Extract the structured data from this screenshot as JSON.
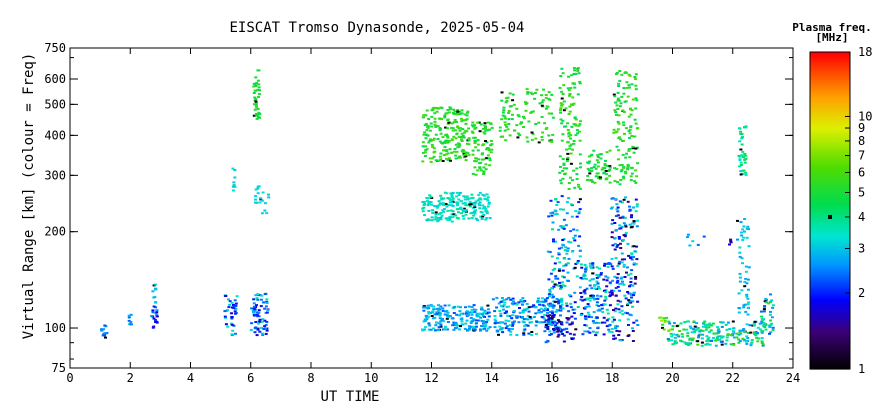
{
  "chart_data": {
    "type": "scatter",
    "title": "EISCAT Tromso Dynasonde, 2025-05-04",
    "xlabel": "UT TIME",
    "ylabel": "Virtual Range [km] (colour = Freq)",
    "xlim": [
      0,
      24
    ],
    "ylim": [
      75,
      750
    ],
    "y_scale": "log",
    "x_ticks": [
      "0",
      "2",
      "4",
      "6",
      "8",
      "10",
      "12",
      "14",
      "16",
      "18",
      "20",
      "22",
      "24"
    ],
    "y_ticks": [
      {
        "value": 75,
        "label": "75"
      },
      {
        "value": 100,
        "label": "100"
      },
      {
        "value": 200,
        "label": "200"
      },
      {
        "value": 300,
        "label": "300"
      },
      {
        "value": 400,
        "label": "400"
      },
      {
        "value": 500,
        "label": "500"
      },
      {
        "value": 600,
        "label": "600"
      },
      {
        "value": 750,
        "label": "750"
      }
    ],
    "grid": false,
    "colorbar": {
      "title": "Plasma freq.",
      "units": "[MHz]",
      "scale": "log",
      "range": [
        1,
        18
      ],
      "tick_values": [
        1,
        2,
        3,
        4,
        5,
        6,
        7,
        8,
        9,
        10,
        18
      ],
      "tick_labels": [
        "1",
        "2",
        "3",
        "4",
        "5",
        "6",
        "7",
        "8",
        "9",
        "10",
        "18"
      ]
    },
    "clusters": [
      {
        "t": [
          1.0,
          1.2
        ],
        "r": [
          93,
          105
        ],
        "f": [
          2.2,
          2.8
        ],
        "n": 14
      },
      {
        "t": [
          1.9,
          2.0
        ],
        "r": [
          102,
          112
        ],
        "f": [
          2.3,
          2.9
        ],
        "n": 8
      },
      {
        "t": [
          2.65,
          2.85
        ],
        "r": [
          100,
          118
        ],
        "f": [
          1.6,
          2.6
        ],
        "n": 18
      },
      {
        "t": [
          2.7,
          2.8
        ],
        "r": [
          120,
          142
        ],
        "f": [
          2.6,
          3.2
        ],
        "n": 10
      },
      {
        "t": [
          5.05,
          5.5
        ],
        "r": [
          95,
          128
        ],
        "f": [
          1.7,
          3.4
        ],
        "n": 40
      },
      {
        "t": [
          5.35,
          5.45
        ],
        "r": [
          268,
          318
        ],
        "f": [
          3.0,
          3.4
        ],
        "n": 8
      },
      {
        "t": [
          5.95,
          6.55
        ],
        "r": [
          95,
          128
        ],
        "f": [
          1.6,
          3.5
        ],
        "n": 70
      },
      {
        "t": [
          6.05,
          6.25
        ],
        "r": [
          445,
          640
        ],
        "f": [
          4.6,
          5.6
        ],
        "n": 40
      },
      {
        "t": [
          6.1,
          6.55
        ],
        "r": [
          228,
          282
        ],
        "f": [
          3.0,
          3.5
        ],
        "n": 20
      },
      {
        "t": [
          11.65,
          13.9
        ],
        "r": [
          98,
          118
        ],
        "f": [
          2.2,
          3.4
        ],
        "n": 220
      },
      {
        "t": [
          11.65,
          13.9
        ],
        "r": [
          215,
          265
        ],
        "f": [
          3.0,
          3.9
        ],
        "n": 210
      },
      {
        "t": [
          11.65,
          13.2
        ],
        "r": [
          330,
          490
        ],
        "f": [
          4.5,
          6.2
        ],
        "n": 220
      },
      {
        "t": [
          13.3,
          14.0
        ],
        "r": [
          300,
          440
        ],
        "f": [
          4.6,
          6.0
        ],
        "n": 80
      },
      {
        "t": [
          14.0,
          16.3
        ],
        "r": [
          95,
          125
        ],
        "f": [
          2.0,
          3.6
        ],
        "n": 220
      },
      {
        "t": [
          14.2,
          16.0
        ],
        "r": [
          380,
          560
        ],
        "f": [
          4.6,
          6.2
        ],
        "n": 110
      },
      {
        "t": [
          15.7,
          16.8
        ],
        "r": [
          90,
          110
        ],
        "f": [
          1.4,
          2.4
        ],
        "n": 60
      },
      {
        "t": [
          15.8,
          16.9
        ],
        "r": [
          110,
          260
        ],
        "f": [
          1.8,
          4.2
        ],
        "n": 150
      },
      {
        "t": [
          16.2,
          16.9
        ],
        "r": [
          270,
          650
        ],
        "f": [
          4.2,
          6.2
        ],
        "n": 120
      },
      {
        "t": [
          16.9,
          17.9
        ],
        "r": [
          95,
          160
        ],
        "f": [
          1.6,
          4.0
        ],
        "n": 160
      },
      {
        "t": [
          17.1,
          17.9
        ],
        "r": [
          280,
          360
        ],
        "f": [
          4.2,
          6.0
        ],
        "n": 60
      },
      {
        "t": [
          17.9,
          18.8
        ],
        "r": [
          90,
          260
        ],
        "f": [
          1.4,
          4.0
        ],
        "n": 200
      },
      {
        "t": [
          18.0,
          18.8
        ],
        "r": [
          280,
          640
        ],
        "f": [
          4.2,
          6.2
        ],
        "n": 130
      },
      {
        "t": [
          19.5,
          19.9
        ],
        "r": [
          98,
          108
        ],
        "f": [
          5.0,
          8.0
        ],
        "n": 12
      },
      {
        "t": [
          19.8,
          23.0
        ],
        "r": [
          88,
          105
        ],
        "f": [
          2.4,
          6.0
        ],
        "n": 210
      },
      {
        "t": [
          20.4,
          21.1
        ],
        "r": [
          180,
          198
        ],
        "f": [
          2.2,
          3.4
        ],
        "n": 6
      },
      {
        "t": [
          21.8,
          21.95
        ],
        "r": [
          182,
          190
        ],
        "f": [
          1.5,
          1.8
        ],
        "n": 4
      },
      {
        "t": [
          22.1,
          22.5
        ],
        "r": [
          110,
          220
        ],
        "f": [
          2.6,
          3.4
        ],
        "n": 50
      },
      {
        "t": [
          22.15,
          22.4
        ],
        "r": [
          300,
          430
        ],
        "f": [
          3.2,
          5.0
        ],
        "n": 40
      },
      {
        "t": [
          22.9,
          23.3
        ],
        "r": [
          95,
          128
        ],
        "f": [
          2.2,
          5.5
        ],
        "n": 40
      }
    ]
  }
}
